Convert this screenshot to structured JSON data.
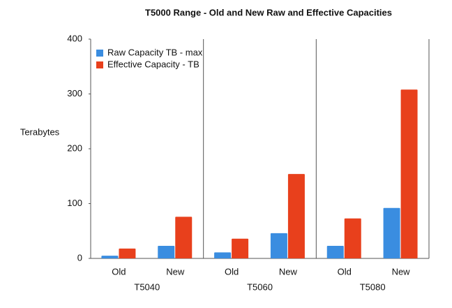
{
  "chart_data": {
    "type": "bar",
    "title": "T5000 Range - Old and New Raw and Effective Capacities",
    "y_label": "Terabytes",
    "categories": [
      "Old",
      "New",
      "Old",
      "New",
      "Old",
      "New"
    ],
    "groups": [
      "T5040",
      "T5060",
      "T5080"
    ],
    "series": [
      {
        "name": "Raw Capacity TB - max",
        "color": "#3a8de0",
        "values": [
          5,
          23,
          11,
          46,
          23,
          92
        ]
      },
      {
        "name": "Effective Capacity - TB",
        "color": "#e8401c",
        "values": [
          18,
          76,
          36,
          154,
          73,
          308
        ]
      }
    ],
    "ylim": [
      0,
      400
    ],
    "yticks": [
      0,
      100,
      200,
      300,
      400
    ],
    "grid": false,
    "legend": "top-left"
  }
}
